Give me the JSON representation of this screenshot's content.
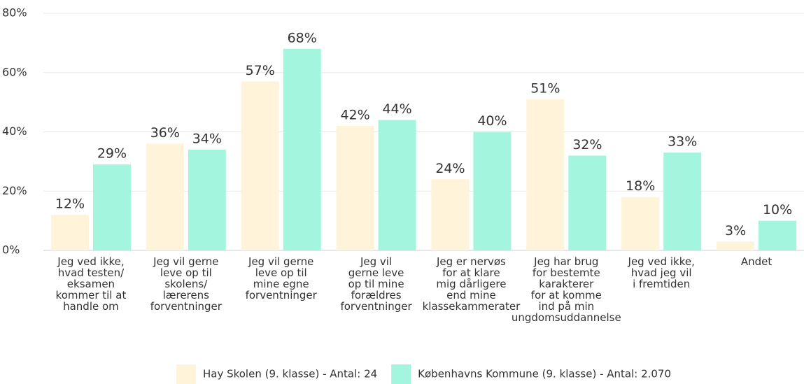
{
  "chart_data": {
    "type": "bar",
    "categories": [
      "Jeg ved ikke,\nhvad testen/\neksamen\nkommer til at\nhandle om",
      "Jeg vil gerne\nleve op til\nskolens/\nlærerens\nforventninger",
      "Jeg vil gerne\nleve op til\nmine egne\nforventninger",
      "Jeg vil\ngerne leve\nop til mine\nforældres\nforventninger",
      "Jeg er nervøs\nfor at klare\nmig dårligere\nend mine\nklassekammerater",
      "Jeg har brug\nfor bestemte\nkarakterer\nfor at komme\nind på min\nungdomsuddannelse",
      "Jeg ved ikke,\nhvad jeg vil\ni fremtiden",
      "Andet"
    ],
    "series": [
      {
        "name": "Hay Skolen (9. klasse) - Antal: 24",
        "color": "#fff3d9",
        "values": [
          12,
          36,
          57,
          42,
          24,
          51,
          18,
          3
        ],
        "value_labels": [
          "12%",
          "36%",
          "57%",
          "42%",
          "24%",
          "51%",
          "18%",
          "3%"
        ]
      },
      {
        "name": "Københavns Kommune (9. klasse) - Antal: 2.070",
        "color": "#a3f5de",
        "values": [
          29,
          34,
          68,
          44,
          40,
          32,
          33,
          10
        ],
        "value_labels": [
          "29%",
          "34%",
          "68%",
          "44%",
          "40%",
          "32%",
          "33%",
          "10%"
        ]
      }
    ],
    "ylim": [
      0,
      80
    ],
    "yticks": [
      {
        "value": 0,
        "label": "0%"
      },
      {
        "value": 20,
        "label": "20%"
      },
      {
        "value": 40,
        "label": "40%"
      },
      {
        "value": 60,
        "label": "60%"
      },
      {
        "value": 80,
        "label": "80%"
      }
    ],
    "grid": true,
    "legend": "bottom"
  }
}
